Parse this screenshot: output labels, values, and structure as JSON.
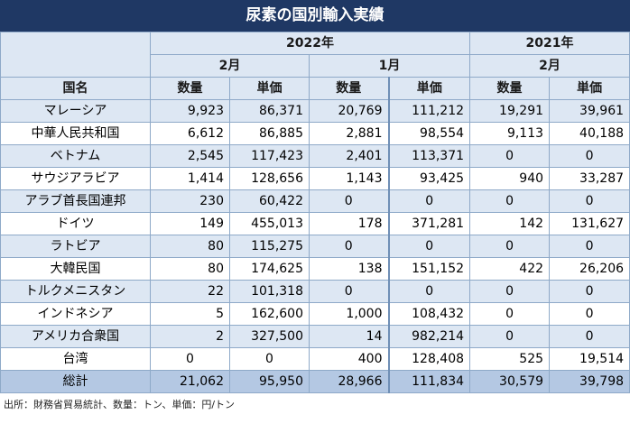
{
  "title": "尿素の国別輸入実績",
  "header": {
    "year_2022": "2022年",
    "year_2021": "2021年",
    "month_feb": "2月",
    "month_jan": "1月",
    "month_feb_2021": "2月",
    "col_country": "国名",
    "qty": "数量",
    "price": "単価"
  },
  "rows": [
    {
      "country": "マレーシア",
      "feb22_qty": "9,923",
      "feb22_price": "86,371",
      "jan22_qty": "20,769",
      "jan22_price": "111,212",
      "feb21_qty": "19,291",
      "feb21_price": "39,961"
    },
    {
      "country": "中華人民共和国",
      "feb22_qty": "6,612",
      "feb22_price": "86,885",
      "jan22_qty": "2,881",
      "jan22_price": "98,554",
      "feb21_qty": "9,113",
      "feb21_price": "40,188"
    },
    {
      "country": "ベトナム",
      "feb22_qty": "2,545",
      "feb22_price": "117,423",
      "jan22_qty": "2,401",
      "jan22_price": "113,371",
      "feb21_qty": "0",
      "feb21_price": "0"
    },
    {
      "country": "サウジアラビア",
      "feb22_qty": "1,414",
      "feb22_price": "128,656",
      "jan22_qty": "1,143",
      "jan22_price": "93,425",
      "feb21_qty": "940",
      "feb21_price": "33,287"
    },
    {
      "country": "アラブ首長国連邦",
      "feb22_qty": "230",
      "feb22_price": "60,422",
      "jan22_qty": "0",
      "jan22_price": "0",
      "feb21_qty": "0",
      "feb21_price": "0"
    },
    {
      "country": "ドイツ",
      "feb22_qty": "149",
      "feb22_price": "455,013",
      "jan22_qty": "178",
      "jan22_price": "371,281",
      "feb21_qty": "142",
      "feb21_price": "131,627"
    },
    {
      "country": "ラトビア",
      "feb22_qty": "80",
      "feb22_price": "115,275",
      "jan22_qty": "0",
      "jan22_price": "0",
      "feb21_qty": "0",
      "feb21_price": "0"
    },
    {
      "country": "大韓民国",
      "feb22_qty": "80",
      "feb22_price": "174,625",
      "jan22_qty": "138",
      "jan22_price": "151,152",
      "feb21_qty": "422",
      "feb21_price": "26,206"
    },
    {
      "country": "トルクメニスタン",
      "feb22_qty": "22",
      "feb22_price": "101,318",
      "jan22_qty": "0",
      "jan22_price": "0",
      "feb21_qty": "0",
      "feb21_price": "0"
    },
    {
      "country": "インドネシア",
      "feb22_qty": "5",
      "feb22_price": "162,600",
      "jan22_qty": "1,000",
      "jan22_price": "108,432",
      "feb21_qty": "0",
      "feb21_price": "0"
    },
    {
      "country": "アメリカ合衆国",
      "feb22_qty": "2",
      "feb22_price": "327,500",
      "jan22_qty": "14",
      "jan22_price": "982,214",
      "feb21_qty": "0",
      "feb21_price": "0"
    },
    {
      "country": "台湾",
      "feb22_qty": "0",
      "feb22_price": "0",
      "jan22_qty": "400",
      "jan22_price": "128,408",
      "feb21_qty": "525",
      "feb21_price": "19,514"
    }
  ],
  "total": {
    "country": "総計",
    "feb22_qty": "21,062",
    "feb22_price": "95,950",
    "jan22_qty": "28,966",
    "jan22_price": "111,834",
    "feb21_qty": "30,579",
    "feb21_price": "39,798"
  },
  "source": "出所：財務省貿易統計、数量：トン、単価：円/トン"
}
